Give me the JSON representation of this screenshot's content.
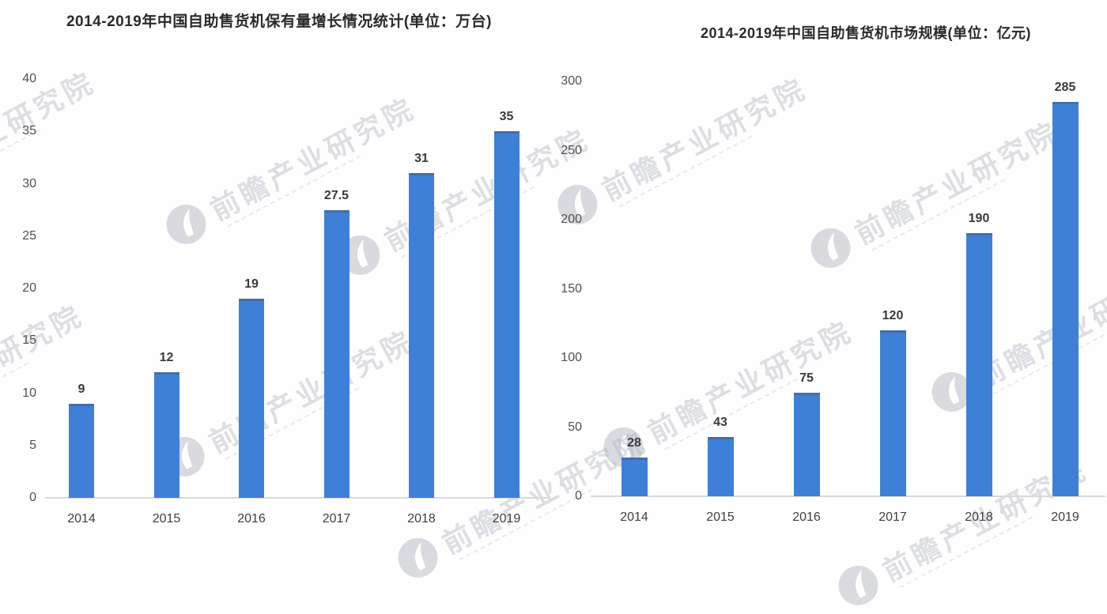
{
  "watermark": {
    "text": "前瞻产业研究院"
  },
  "chart_data": [
    {
      "type": "bar",
      "title": "2014-2019年中国自助售货机保有量增长情况统计(单位：万台)",
      "categories": [
        "2014",
        "2015",
        "2016",
        "2017",
        "2018",
        "2019"
      ],
      "values": [
        9,
        12,
        19,
        27.5,
        31,
        35
      ],
      "xlabel": "",
      "ylabel": "",
      "ylim": [
        0,
        40
      ],
      "yticks": [
        0,
        5,
        10,
        15,
        20,
        25,
        30,
        35,
        40
      ],
      "grid": false,
      "legend": "none",
      "bar_color": "#3e7fd8"
    },
    {
      "type": "bar",
      "title": "2014-2019年中国自助售货机市场规模(单位：亿元)",
      "categories": [
        "2014",
        "2015",
        "2016",
        "2017",
        "2018",
        "2019"
      ],
      "values": [
        28,
        43,
        75,
        120,
        190,
        285
      ],
      "xlabel": "",
      "ylabel": "",
      "ylim": [
        0,
        300
      ],
      "yticks": [
        0,
        50,
        100,
        150,
        200,
        250,
        300
      ],
      "grid": false,
      "legend": "none",
      "bar_color": "#3e7fd8"
    }
  ]
}
